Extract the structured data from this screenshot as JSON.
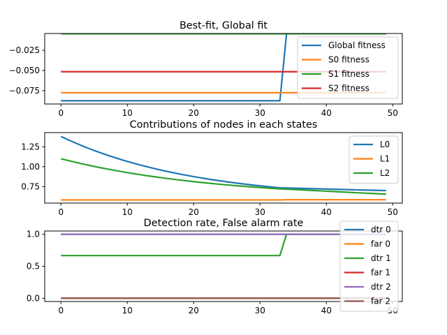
{
  "chart_data": [
    {
      "type": "line",
      "title": "Best-fit, Global fit",
      "xlim": [
        -2.45,
        51.45
      ],
      "ylim": [
        -0.0915,
        -0.0042
      ],
      "xticks": [
        0,
        10,
        20,
        30,
        40,
        50
      ],
      "xtick_labels": [
        "0",
        "10",
        "20",
        "30",
        "40",
        "50"
      ],
      "yticks": [
        -0.025,
        -0.05,
        -0.075
      ],
      "ytick_labels": [
        "−0.025",
        "−0.050",
        "−0.075"
      ],
      "legend_position": "upper right",
      "series": [
        {
          "name": "Global fitness",
          "color": "#1f77b4",
          "type": "step",
          "points": [
            [
              0,
              -0.0875
            ],
            [
              33,
              -0.0875
            ],
            [
              34,
              -0.0045
            ],
            [
              49,
              -0.0045
            ]
          ]
        },
        {
          "name": "S0 fitness",
          "color": "#ff7f0e",
          "type": "constant",
          "points": [
            [
              0,
              -0.0775
            ],
            [
              49,
              -0.0775
            ]
          ]
        },
        {
          "name": "S1 fitness",
          "color": "#2ca02c",
          "type": "constant",
          "points": [
            [
              0,
              -0.0045
            ],
            [
              49,
              -0.0045
            ]
          ]
        },
        {
          "name": "S2 fitness",
          "color": "#d62728",
          "type": "constant",
          "points": [
            [
              0,
              -0.0515
            ],
            [
              49,
              -0.0515
            ]
          ]
        }
      ]
    },
    {
      "type": "line",
      "title": "Contributions of nodes in each states",
      "xlim": [
        -2.45,
        51.45
      ],
      "ylim": [
        0.543,
        1.428
      ],
      "xticks": [
        0,
        10,
        20,
        30,
        40,
        50
      ],
      "xtick_labels": [
        "0",
        "10",
        "20",
        "30",
        "40",
        "50"
      ],
      "yticks": [
        0.75,
        1.0,
        1.25
      ],
      "ytick_labels": [
        "0.75",
        "1.00",
        "1.25"
      ],
      "legend_position": "upper right",
      "series": [
        {
          "name": "L0",
          "color": "#1f77b4",
          "type": "decay",
          "params": {
            "start": 1.38,
            "a": 0.8,
            "b": 0.58,
            "k": 0.0498,
            "break_at": 33,
            "end": 0.7
          }
        },
        {
          "name": "L1",
          "color": "#ff7f0e",
          "type": "constant",
          "points": [
            [
              0,
              0.583
            ],
            [
              33,
              0.583
            ],
            [
              34,
              0.585
            ],
            [
              49,
              0.585
            ]
          ]
        },
        {
          "name": "L2",
          "color": "#2ca02c",
          "type": "decay",
          "params": {
            "start": 1.1,
            "a": 0.72,
            "b": 0.6,
            "k": 0.0428,
            "break_at": 33,
            "end": 0.655
          }
        }
      ]
    },
    {
      "type": "line",
      "title": "Detection rate, False alarm rate",
      "xlim": [
        -2.45,
        51.45
      ],
      "ylim": [
        -0.05,
        1.05
      ],
      "xticks": [
        0,
        10,
        20,
        30,
        40,
        50
      ],
      "xtick_labels": [
        "0",
        "10",
        "20",
        "30",
        "40",
        "50"
      ],
      "yticks": [
        0.0,
        0.5,
        1.0
      ],
      "ytick_labels": [
        "0.0",
        "0.5",
        "1.0"
      ],
      "legend_position": "right",
      "series": [
        {
          "name": "dtr 0",
          "color": "#1f77b4",
          "type": "constant",
          "points": [
            [
              0,
              1.0
            ],
            [
              49,
              1.0
            ]
          ]
        },
        {
          "name": "far 0",
          "color": "#ff7f0e",
          "type": "constant",
          "points": [
            [
              0,
              0.0
            ],
            [
              49,
              0.0
            ]
          ]
        },
        {
          "name": "dtr 1",
          "color": "#2ca02c",
          "type": "step",
          "points": [
            [
              0,
              0.667
            ],
            [
              33,
              0.667
            ],
            [
              34,
              1.0
            ],
            [
              49,
              1.0
            ]
          ]
        },
        {
          "name": "far 1",
          "color": "#d62728",
          "type": "constant",
          "points": [
            [
              0,
              0.0
            ],
            [
              49,
              0.0
            ]
          ]
        },
        {
          "name": "dtr 2",
          "color": "#9467bd",
          "type": "constant",
          "points": [
            [
              0,
              1.0
            ],
            [
              49,
              1.0
            ]
          ]
        },
        {
          "name": "far 2",
          "color": "#8c564b",
          "type": "constant",
          "points": [
            [
              0,
              0.0
            ],
            [
              49,
              0.0
            ]
          ]
        }
      ]
    }
  ]
}
